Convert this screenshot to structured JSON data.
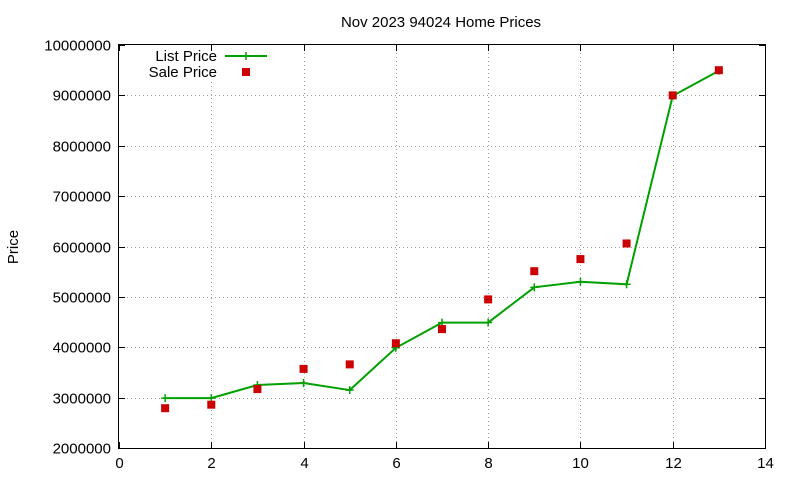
{
  "chart_data": {
    "type": "line",
    "title": "Nov 2023 94024 Home Prices",
    "xlabel": "",
    "ylabel": "Price",
    "xlim": [
      0,
      14
    ],
    "ylim": [
      2000000,
      10000000
    ],
    "x_ticks": [
      "0",
      "2",
      "4",
      "6",
      "8",
      "10",
      "12",
      "14"
    ],
    "y_ticks": [
      "2000000",
      "3000000",
      "4000000",
      "5000000",
      "6000000",
      "7000000",
      "8000000",
      "9000000",
      "10000000"
    ],
    "grid": true,
    "legend_position": "top-left",
    "series": [
      {
        "name": "List Price",
        "style": "line-with-plus-markers",
        "color": "#00a000",
        "x": [
          1,
          2,
          3,
          4,
          5,
          6,
          7,
          8,
          9,
          10,
          11,
          12,
          13
        ],
        "values": [
          2990000,
          2990000,
          3250000,
          3290000,
          3150000,
          3990000,
          4490000,
          4490000,
          5190000,
          5300000,
          5250000,
          8990000,
          9490000
        ]
      },
      {
        "name": "Sale Price",
        "style": "square-markers",
        "color": "#cc0000",
        "x": [
          1,
          2,
          3,
          4,
          5,
          6,
          7,
          8,
          9,
          10,
          11,
          12,
          13
        ],
        "values": [
          2790000,
          2860000,
          3170000,
          3570000,
          3660000,
          4080000,
          4360000,
          4950000,
          5510000,
          5750000,
          6060000,
          9000000,
          9500000
        ]
      }
    ]
  }
}
